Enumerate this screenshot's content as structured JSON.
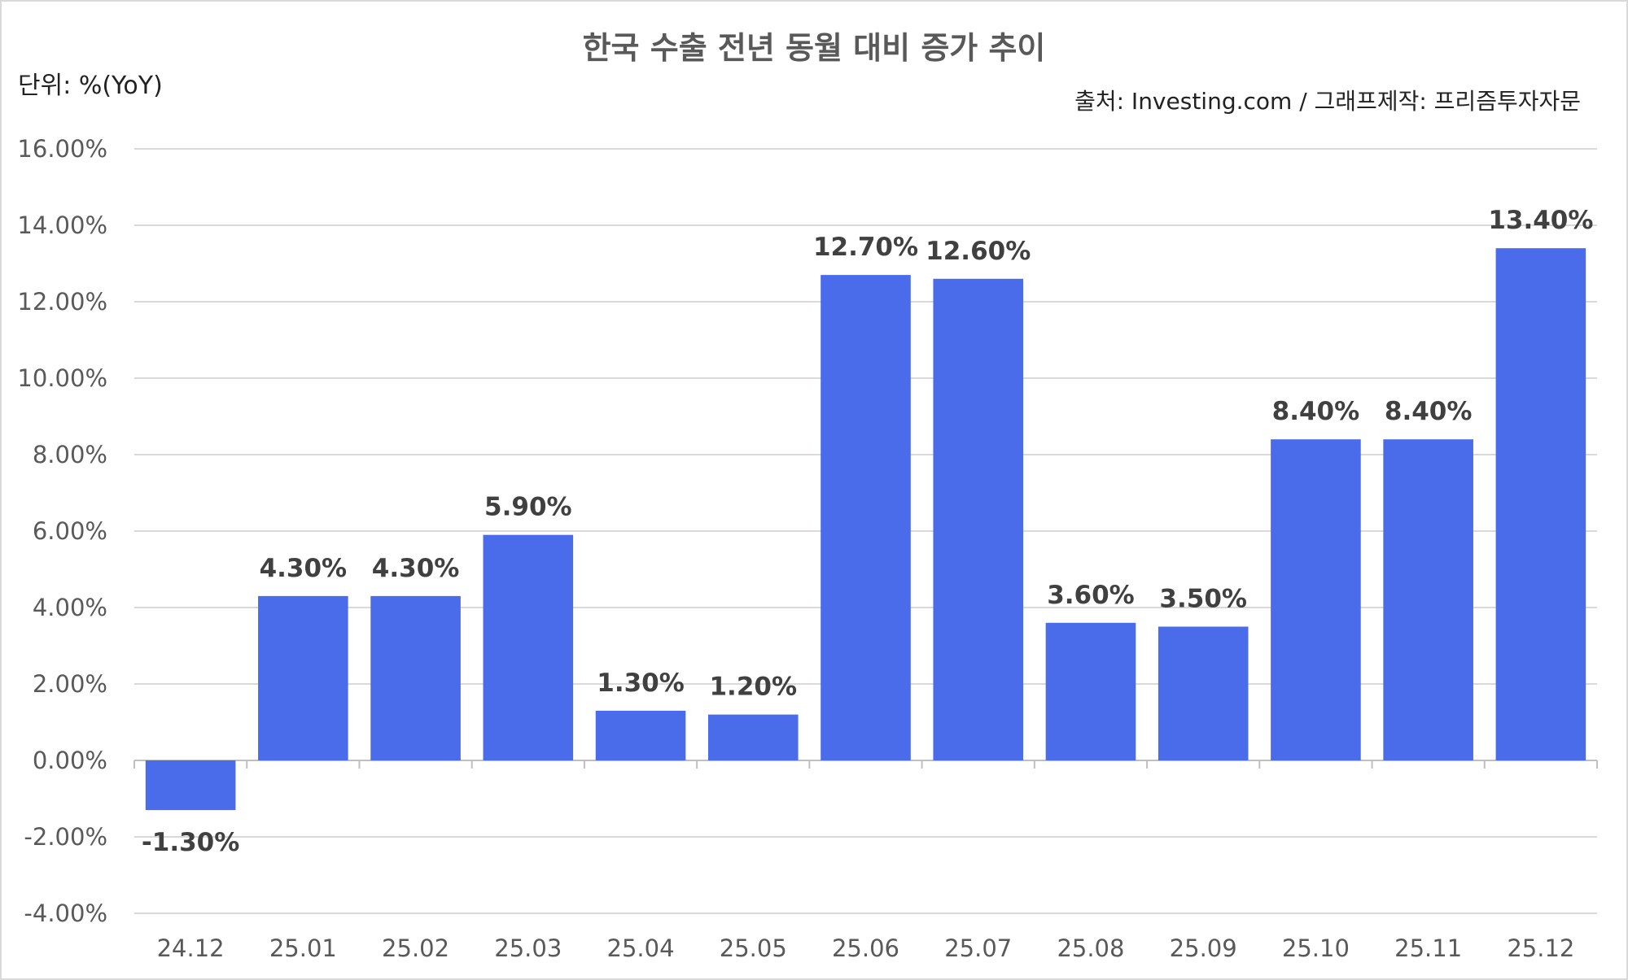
{
  "chart_data": {
    "type": "bar",
    "title": "한국 수출 전년 동월 대비 증가 추이",
    "unit_label": "단위: %(YoY)",
    "source_label": "출처: Investing.com / 그래프제작: 프리즘투자자문",
    "categories": [
      "24.12",
      "25.01",
      "25.02",
      "25.03",
      "25.04",
      "25.05",
      "25.06",
      "25.07",
      "25.08",
      "25.09",
      "25.10",
      "25.11",
      "25.12"
    ],
    "values": [
      -1.3,
      4.3,
      4.3,
      5.9,
      1.3,
      1.2,
      12.7,
      12.6,
      3.6,
      3.5,
      8.4,
      8.4,
      13.4
    ],
    "value_labels": [
      "-1.30%",
      "4.30%",
      "4.30%",
      "5.90%",
      "1.30%",
      "1.20%",
      "12.70%",
      "12.60%",
      "3.60%",
      "3.50%",
      "8.40%",
      "8.40%",
      "13.40%"
    ],
    "y_ticks": [
      -4,
      -2,
      0,
      2,
      4,
      6,
      8,
      10,
      12,
      14,
      16
    ],
    "y_tick_labels": [
      "-4.00%",
      "-2.00%",
      "0.00%",
      "2.00%",
      "4.00%",
      "6.00%",
      "8.00%",
      "10.00%",
      "12.00%",
      "14.00%",
      "16.00%"
    ],
    "ylim": [
      -4,
      16
    ],
    "xlabel": "",
    "ylabel": "",
    "grid": true,
    "legend": "none",
    "colors": {
      "bar": "#4a6cea",
      "grid": "#d9d9d9",
      "title": "#595959",
      "text": "#222222",
      "data_label": "#404040"
    }
  }
}
